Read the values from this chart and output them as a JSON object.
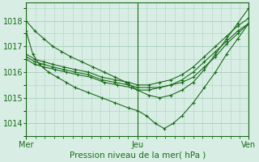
{
  "xlabel": "Pression niveau de la mer( hPa )",
  "background_color": "#d8eee4",
  "grid_color": "#b0d0c4",
  "line_color": "#1a6b1a",
  "ylim": [
    1013.5,
    1018.7
  ],
  "yticks": [
    1014,
    1015,
    1016,
    1017,
    1018
  ],
  "xtick_labels": [
    "Mer",
    "Jeu",
    "Ven"
  ],
  "xtick_positions": [
    0,
    0.5,
    1.0
  ],
  "series": [
    {
      "x": [
        0.0,
        0.04,
        0.08,
        0.12,
        0.16,
        0.2,
        0.25,
        0.3,
        0.35,
        0.4,
        0.45,
        0.5,
        0.55,
        0.6,
        0.65,
        0.7,
        0.75,
        0.8,
        0.85,
        0.9,
        0.95,
        1.0
      ],
      "y": [
        1018.0,
        1017.6,
        1017.3,
        1017.0,
        1016.8,
        1016.6,
        1016.4,
        1016.2,
        1016.0,
        1015.8,
        1015.6,
        1015.3,
        1015.1,
        1015.0,
        1015.1,
        1015.3,
        1015.6,
        1016.1,
        1016.7,
        1017.3,
        1017.9,
        1018.5
      ]
    },
    {
      "x": [
        0.0,
        0.03,
        0.06,
        0.1,
        0.14,
        0.18,
        0.22,
        0.28,
        0.34,
        0.4,
        0.46,
        0.5,
        0.54,
        0.58,
        0.62,
        0.66,
        0.7,
        0.75,
        0.8,
        0.85,
        0.9,
        0.95,
        1.0
      ],
      "y": [
        1017.6,
        1016.7,
        1016.3,
        1016.0,
        1015.8,
        1015.6,
        1015.4,
        1015.2,
        1015.0,
        1014.8,
        1014.6,
        1014.5,
        1014.3,
        1014.0,
        1013.8,
        1014.0,
        1014.3,
        1014.8,
        1015.4,
        1016.0,
        1016.7,
        1017.3,
        1017.9
      ]
    },
    {
      "x": [
        0.0,
        0.04,
        0.08,
        0.12,
        0.17,
        0.22,
        0.28,
        0.34,
        0.4,
        0.46,
        0.5,
        0.55,
        0.6,
        0.65,
        0.7,
        0.75,
        0.8,
        0.85,
        0.9,
        0.95,
        1.0
      ],
      "y": [
        1016.6,
        1016.4,
        1016.3,
        1016.2,
        1016.1,
        1016.0,
        1015.9,
        1015.7,
        1015.6,
        1015.5,
        1015.4,
        1015.4,
        1015.4,
        1015.5,
        1015.6,
        1015.8,
        1016.2,
        1016.6,
        1017.1,
        1017.5,
        1017.9
      ]
    },
    {
      "x": [
        0.0,
        0.04,
        0.08,
        0.12,
        0.17,
        0.22,
        0.28,
        0.34,
        0.4,
        0.46,
        0.5,
        0.55,
        0.6,
        0.65,
        0.7,
        0.75,
        0.8,
        0.85,
        0.9,
        0.95,
        1.0
      ],
      "y": [
        1016.7,
        1016.5,
        1016.4,
        1016.3,
        1016.2,
        1016.1,
        1016.0,
        1015.8,
        1015.7,
        1015.6,
        1015.5,
        1015.5,
        1015.6,
        1015.7,
        1015.9,
        1016.2,
        1016.6,
        1017.0,
        1017.4,
        1017.8,
        1018.1
      ]
    },
    {
      "x": [
        0.0,
        0.04,
        0.08,
        0.13,
        0.18,
        0.23,
        0.29,
        0.35,
        0.41,
        0.47,
        0.5,
        0.55,
        0.6,
        0.65,
        0.7,
        0.75,
        0.8,
        0.85,
        0.9,
        0.95,
        1.0
      ],
      "y": [
        1016.5,
        1016.3,
        1016.2,
        1016.1,
        1016.0,
        1015.9,
        1015.8,
        1015.6,
        1015.5,
        1015.4,
        1015.3,
        1015.3,
        1015.4,
        1015.5,
        1015.7,
        1016.0,
        1016.4,
        1016.8,
        1017.2,
        1017.6,
        1017.9
      ]
    }
  ]
}
